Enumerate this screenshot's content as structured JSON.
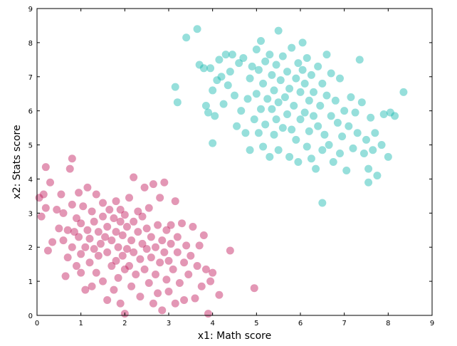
{
  "chart_data": {
    "type": "scatter",
    "title": "",
    "xlabel": "x1: Math score",
    "ylabel": "x2: Stats score",
    "xlim": [
      0,
      9
    ],
    "ylim": [
      0,
      9
    ],
    "xticks": [
      "0",
      "1",
      "2",
      "3",
      "4",
      "5",
      "6",
      "7",
      "8",
      "9"
    ],
    "yticks": [
      "0",
      "1",
      "2",
      "3",
      "4",
      "5",
      "6",
      "7",
      "8",
      "9"
    ],
    "grid": false,
    "legend": "none",
    "series": [
      {
        "color": "#c0185c",
        "points": [
          [
            0.05,
            3.45
          ],
          [
            0.1,
            2.9
          ],
          [
            0.15,
            3.55
          ],
          [
            0.2,
            4.35
          ],
          [
            0.2,
            3.15
          ],
          [
            0.3,
            3.9
          ],
          [
            0.25,
            1.9
          ],
          [
            0.35,
            2.15
          ],
          [
            0.45,
            3.1
          ],
          [
            0.5,
            2.55
          ],
          [
            0.55,
            3.55
          ],
          [
            0.6,
            2.2
          ],
          [
            0.6,
            3.0
          ],
          [
            0.65,
            1.15
          ],
          [
            0.7,
            1.7
          ],
          [
            0.7,
            2.5
          ],
          [
            0.75,
            4.3
          ],
          [
            0.8,
            3.25
          ],
          [
            0.8,
            2.0
          ],
          [
            0.8,
            4.6
          ],
          [
            0.85,
            2.45
          ],
          [
            0.9,
            1.45
          ],
          [
            0.9,
            2.85
          ],
          [
            0.95,
            3.6
          ],
          [
            0.95,
            2.3
          ],
          [
            1.0,
            1.8
          ],
          [
            1.0,
            2.7
          ],
          [
            1.0,
            1.25
          ],
          [
            1.05,
            3.2
          ],
          [
            1.1,
            2.0
          ],
          [
            1.1,
            0.75
          ],
          [
            1.15,
            2.5
          ],
          [
            1.15,
            3.75
          ],
          [
            1.2,
            1.55
          ],
          [
            1.2,
            2.25
          ],
          [
            1.25,
            3.05
          ],
          [
            1.25,
            0.85
          ],
          [
            1.3,
            1.95
          ],
          [
            1.3,
            2.75
          ],
          [
            1.35,
            1.25
          ],
          [
            1.35,
            3.55
          ],
          [
            1.4,
            2.45
          ],
          [
            1.4,
            1.75
          ],
          [
            1.45,
            2.1
          ],
          [
            1.5,
            3.3
          ],
          [
            1.5,
            1.0
          ],
          [
            1.5,
            2.9
          ],
          [
            1.55,
            2.3
          ],
          [
            1.6,
            1.85
          ],
          [
            1.6,
            2.6
          ],
          [
            1.6,
            0.45
          ],
          [
            1.65,
            3.1
          ],
          [
            1.7,
            1.45
          ],
          [
            1.7,
            2.2
          ],
          [
            1.75,
            2.85
          ],
          [
            1.75,
            0.75
          ],
          [
            1.8,
            1.6
          ],
          [
            1.8,
            3.35
          ],
          [
            1.8,
            2.45
          ],
          [
            1.85,
            2.0
          ],
          [
            1.85,
            1.1
          ],
          [
            1.9,
            2.75
          ],
          [
            1.9,
            0.35
          ],
          [
            1.9,
            3.1
          ],
          [
            1.95,
            1.75
          ],
          [
            1.95,
            2.35
          ],
          [
            2.0,
            2.95
          ],
          [
            2.0,
            1.35
          ],
          [
            2.0,
            0.05
          ],
          [
            2.05,
            2.6
          ],
          [
            2.05,
            1.95
          ],
          [
            2.1,
            3.45
          ],
          [
            2.1,
            1.45
          ],
          [
            2.15,
            2.2
          ],
          [
            2.15,
            0.85
          ],
          [
            2.2,
            2.75
          ],
          [
            2.2,
            1.85
          ],
          [
            2.2,
            4.05
          ],
          [
            2.25,
            1.2
          ],
          [
            2.3,
            2.45
          ],
          [
            2.3,
            3.05
          ],
          [
            2.35,
            1.65
          ],
          [
            2.35,
            0.55
          ],
          [
            2.4,
            2.1
          ],
          [
            2.4,
            2.9
          ],
          [
            2.45,
            1.35
          ],
          [
            2.45,
            3.75
          ],
          [
            2.5,
            1.95
          ],
          [
            2.5,
            2.55
          ],
          [
            2.55,
            0.95
          ],
          [
            2.55,
            3.15
          ],
          [
            2.6,
            1.7
          ],
          [
            2.6,
            2.3
          ],
          [
            2.65,
            0.35
          ],
          [
            2.65,
            3.85
          ],
          [
            2.7,
            2.0
          ],
          [
            2.7,
            1.2
          ],
          [
            2.75,
            2.65
          ],
          [
            2.75,
            0.65
          ],
          [
            2.8,
            1.55
          ],
          [
            2.8,
            3.45
          ],
          [
            2.85,
            2.2
          ],
          [
            2.85,
            0.15
          ],
          [
            2.9,
            1.85
          ],
          [
            2.9,
            3.9
          ],
          [
            2.95,
            2.5
          ],
          [
            2.95,
            1.05
          ],
          [
            3.0,
            1.6
          ],
          [
            3.0,
            0.7
          ],
          [
            3.05,
            2.1
          ],
          [
            3.05,
            2.65
          ],
          [
            3.1,
            1.35
          ],
          [
            3.15,
            3.35
          ],
          [
            3.15,
            0.35
          ],
          [
            3.2,
            1.85
          ],
          [
            3.2,
            2.3
          ],
          [
            3.25,
            0.95
          ],
          [
            3.3,
            2.7
          ],
          [
            3.35,
            1.55
          ],
          [
            3.35,
            0.45
          ],
          [
            3.4,
            2.05
          ],
          [
            3.45,
            1.2
          ],
          [
            3.5,
            1.75
          ],
          [
            3.55,
            2.6
          ],
          [
            3.6,
            0.5
          ],
          [
            3.65,
            1.45
          ],
          [
            3.7,
            2.05
          ],
          [
            3.75,
            0.85
          ],
          [
            3.8,
            2.35
          ],
          [
            3.85,
            1.35
          ],
          [
            3.9,
            0.05
          ],
          [
            3.95,
            1.0
          ],
          [
            4.0,
            1.25
          ],
          [
            4.15,
            0.6
          ],
          [
            4.4,
            1.9
          ],
          [
            4.95,
            0.8
          ]
        ]
      },
      {
        "color": "#17b8b0",
        "points": [
          [
            3.15,
            6.7
          ],
          [
            3.2,
            6.25
          ],
          [
            3.4,
            8.15
          ],
          [
            3.65,
            8.4
          ],
          [
            3.7,
            7.35
          ],
          [
            3.8,
            7.25
          ],
          [
            3.85,
            6.15
          ],
          [
            3.9,
            5.95
          ],
          [
            3.95,
            7.25
          ],
          [
            4.0,
            5.05
          ],
          [
            4.0,
            6.6
          ],
          [
            4.05,
            5.85
          ],
          [
            4.1,
            6.9
          ],
          [
            4.15,
            7.5
          ],
          [
            4.2,
            7.0
          ],
          [
            4.25,
            6.2
          ],
          [
            4.3,
            7.65
          ],
          [
            4.35,
            6.75
          ],
          [
            4.4,
            7.15
          ],
          [
            4.45,
            7.65
          ],
          [
            4.5,
            6.45
          ],
          [
            4.55,
            5.55
          ],
          [
            4.6,
            7.4
          ],
          [
            4.65,
            6.0
          ],
          [
            4.7,
            7.55
          ],
          [
            4.75,
            5.35
          ],
          [
            4.8,
            6.35
          ],
          [
            4.85,
            6.95
          ],
          [
            4.85,
            4.85
          ],
          [
            4.9,
            7.3
          ],
          [
            4.95,
            5.75
          ],
          [
            5.0,
            7.8
          ],
          [
            5.0,
            6.5
          ],
          [
            5.05,
            7.2
          ],
          [
            5.05,
            5.35
          ],
          [
            5.1,
            8.05
          ],
          [
            5.1,
            6.05
          ],
          [
            5.15,
            6.8
          ],
          [
            5.15,
            4.95
          ],
          [
            5.2,
            7.45
          ],
          [
            5.2,
            5.6
          ],
          [
            5.25,
            6.35
          ],
          [
            5.3,
            7.65
          ],
          [
            5.3,
            4.65
          ],
          [
            5.35,
            6.05
          ],
          [
            5.35,
            7.05
          ],
          [
            5.4,
            5.3
          ],
          [
            5.4,
            6.6
          ],
          [
            5.45,
            7.35
          ],
          [
            5.45,
            5.75
          ],
          [
            5.5,
            6.25
          ],
          [
            5.5,
            8.35
          ],
          [
            5.5,
            4.85
          ],
          [
            5.55,
            6.9
          ],
          [
            5.6,
            5.5
          ],
          [
            5.6,
            7.6
          ],
          [
            5.65,
            6.4
          ],
          [
            5.7,
            5.9
          ],
          [
            5.7,
            7.15
          ],
          [
            5.75,
            4.65
          ],
          [
            5.75,
            6.65
          ],
          [
            5.8,
            5.45
          ],
          [
            5.8,
            7.85
          ],
          [
            5.85,
            6.15
          ],
          [
            5.9,
            6.95
          ],
          [
            5.9,
            5.15
          ],
          [
            5.95,
            7.4
          ],
          [
            5.95,
            4.5
          ],
          [
            6.0,
            6.55
          ],
          [
            6.0,
            5.75
          ],
          [
            6.05,
            7.2
          ],
          [
            6.05,
            8.0
          ],
          [
            6.1,
            5.95
          ],
          [
            6.1,
            6.8
          ],
          [
            6.15,
            4.95
          ],
          [
            6.15,
            7.55
          ],
          [
            6.2,
            6.3
          ],
          [
            6.2,
            5.4
          ],
          [
            6.25,
            4.6
          ],
          [
            6.25,
            7.05
          ],
          [
            6.3,
            5.85
          ],
          [
            6.3,
            6.55
          ],
          [
            6.35,
            4.3
          ],
          [
            6.4,
            7.3
          ],
          [
            6.4,
            5.55
          ],
          [
            6.45,
            6.15
          ],
          [
            6.5,
            4.85
          ],
          [
            6.5,
            6.8
          ],
          [
            6.55,
            5.3
          ],
          [
            6.6,
            6.45
          ],
          [
            6.6,
            7.65
          ],
          [
            6.65,
            5.0
          ],
          [
            6.7,
            5.85
          ],
          [
            6.7,
            7.1
          ],
          [
            6.75,
            4.5
          ],
          [
            6.8,
            6.3
          ],
          [
            6.85,
            5.65
          ],
          [
            6.9,
            6.95
          ],
          [
            6.9,
            4.75
          ],
          [
            6.95,
            5.25
          ],
          [
            7.0,
            6.0
          ],
          [
            7.05,
            4.25
          ],
          [
            7.1,
            5.55
          ],
          [
            7.15,
            6.4
          ],
          [
            7.2,
            4.9
          ],
          [
            7.25,
            5.95
          ],
          [
            7.3,
            5.35
          ],
          [
            7.35,
            7.5
          ],
          [
            7.4,
            6.25
          ],
          [
            7.45,
            4.75
          ],
          [
            7.5,
            5.15
          ],
          [
            7.55,
            4.3
          ],
          [
            7.6,
            5.8
          ],
          [
            7.65,
            4.85
          ],
          [
            7.7,
            5.35
          ],
          [
            7.75,
            4.1
          ],
          [
            7.85,
            5.0
          ],
          [
            7.9,
            5.9
          ],
          [
            8.0,
            4.65
          ],
          [
            8.15,
            5.85
          ],
          [
            8.35,
            6.55
          ],
          [
            6.5,
            3.3
          ],
          [
            7.55,
            3.9
          ],
          [
            8.05,
            5.95
          ]
        ]
      }
    ]
  }
}
